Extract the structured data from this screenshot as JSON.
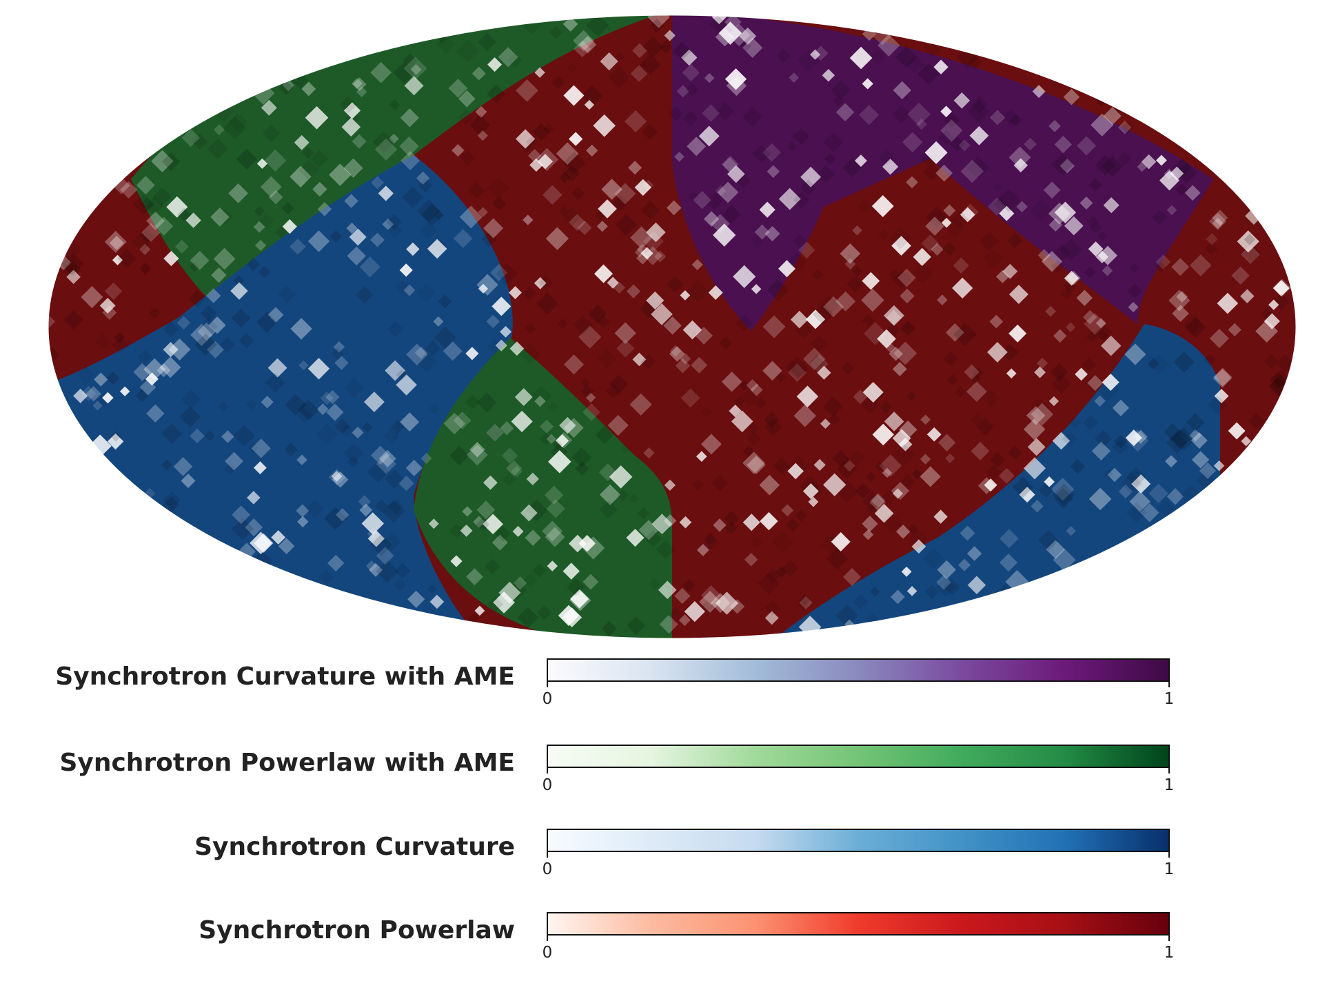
{
  "map": {
    "projection": "mollweide",
    "regions": [
      {
        "model": "Synchrotron Curvature with AME",
        "colormap": "purple"
      },
      {
        "model": "Synchrotron Powerlaw with AME",
        "colormap": "green"
      },
      {
        "model": "Synchrotron Curvature",
        "colormap": "blue"
      },
      {
        "model": "Synchrotron Powerlaw",
        "colormap": "red"
      }
    ]
  },
  "legend": [
    {
      "label": "Synchrotron Curvature with AME",
      "tick_min": "0",
      "tick_max": "1",
      "colors": [
        "#fcfbfd",
        "#d9e4f0",
        "#a3bcd8",
        "#8a89bd",
        "#7a4a9f",
        "#6c1a7a",
        "#3f0a45"
      ]
    },
    {
      "label": "Synchrotron Powerlaw with AME",
      "tick_min": "0",
      "tick_max": "1",
      "colors": [
        "#f7fcf5",
        "#e5f5e0",
        "#a1d99b",
        "#74c476",
        "#41ab5d",
        "#238b45",
        "#00441b"
      ]
    },
    {
      "label": "Synchrotron Curvature",
      "tick_min": "0",
      "tick_max": "1",
      "colors": [
        "#f7fbff",
        "#deebf7",
        "#c6dbef",
        "#6baed6",
        "#4292c6",
        "#2171b5",
        "#08306b"
      ]
    },
    {
      "label": "Synchrotron Powerlaw",
      "tick_min": "0",
      "tick_max": "1",
      "colors": [
        "#fff5f0",
        "#fcbba1",
        "#fc9272",
        "#ef3b2c",
        "#cb181d",
        "#a50f15",
        "#67000d"
      ]
    }
  ]
}
